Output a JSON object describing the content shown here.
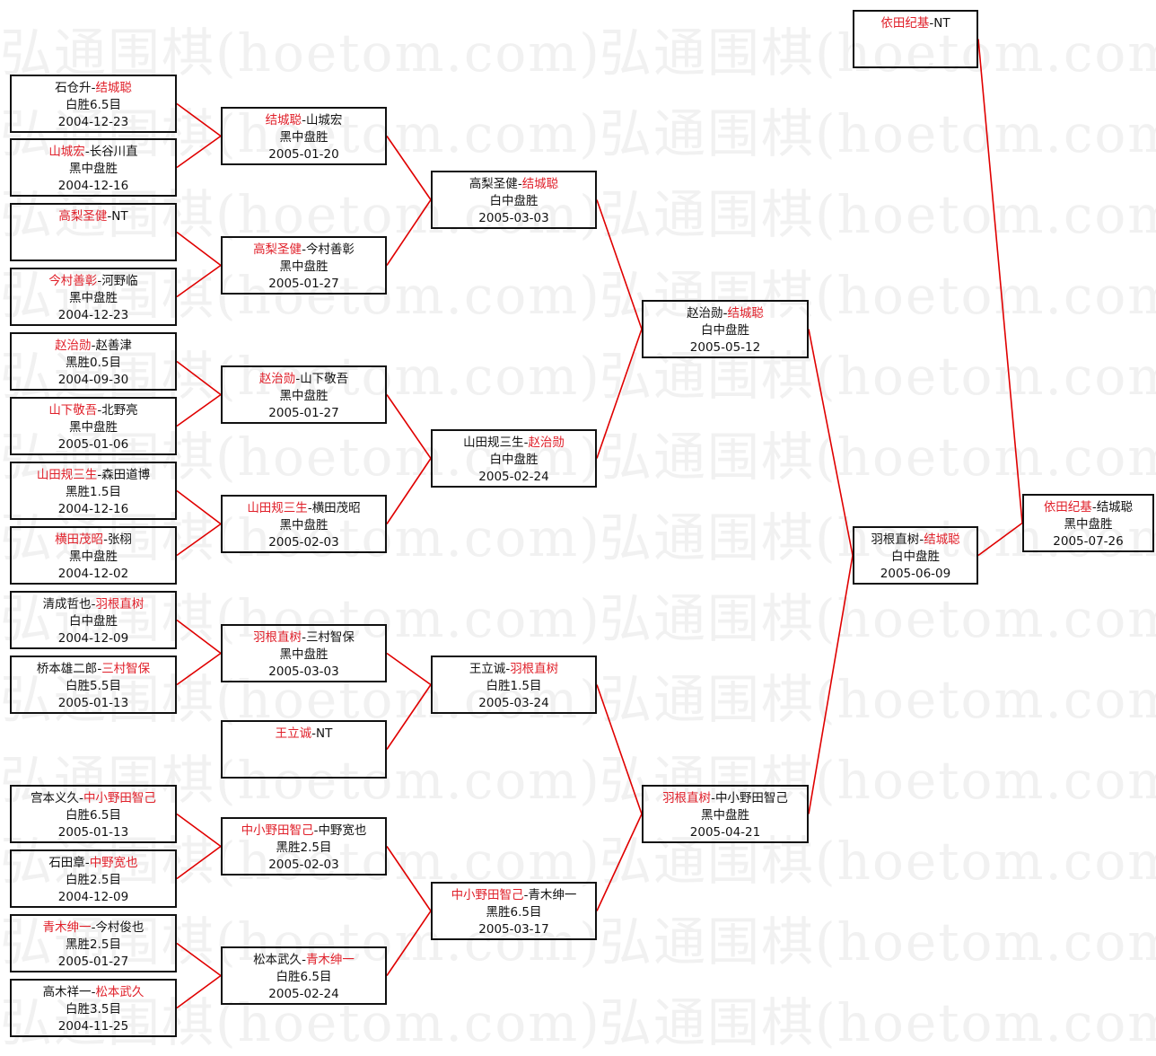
{
  "watermark": "弘通围棋(hoetom.com)",
  "colors": {
    "winner": "#e0202a",
    "connector": "#e00000",
    "border": "#111111"
  },
  "separator": "-",
  "rounds": {
    "round1": [
      {
        "p1": "石仓升",
        "p2": "结城聪",
        "winner": 2,
        "result": "白胜6.5目",
        "date": "2004-12-23"
      },
      {
        "p1": "山城宏",
        "p2": "长谷川直",
        "winner": 1,
        "result": "黑中盘胜",
        "date": "2004-12-16"
      },
      {
        "p1": "高梨圣健",
        "p2": "NT",
        "winner": 1,
        "result": "",
        "date": ""
      },
      {
        "p1": "今村善彰",
        "p2": "河野临",
        "winner": 1,
        "result": "黑中盘胜",
        "date": "2004-12-23"
      },
      {
        "p1": "赵治勋",
        "p2": "赵善津",
        "winner": 1,
        "result": "黑胜0.5目",
        "date": "2004-09-30"
      },
      {
        "p1": "山下敬吾",
        "p2": "北野亮",
        "winner": 1,
        "result": "黑中盘胜",
        "date": "2005-01-06"
      },
      {
        "p1": "山田规三生",
        "p2": "森田道博",
        "winner": 1,
        "result": "黑胜1.5目",
        "date": "2004-12-16"
      },
      {
        "p1": "横田茂昭",
        "p2": "张栩",
        "winner": 1,
        "result": "黑中盘胜",
        "date": "2004-12-02"
      },
      {
        "p1": "清成哲也",
        "p2": "羽根直树",
        "winner": 2,
        "result": "白中盘胜",
        "date": "2004-12-09"
      },
      {
        "p1": "桥本雄二郎",
        "p2": "三村智保",
        "winner": 2,
        "result": "白胜5.5目",
        "date": "2005-01-13"
      },
      {
        "p1": "宫本义久",
        "p2": "中小野田智己",
        "winner": 2,
        "result": "白胜6.5目",
        "date": "2005-01-13"
      },
      {
        "p1": "石田章",
        "p2": "中野宽也",
        "winner": 2,
        "result": "白胜2.5目",
        "date": "2004-12-09"
      },
      {
        "p1": "青木绅一",
        "p2": "今村俊也",
        "winner": 1,
        "result": "黑胜2.5目",
        "date": "2005-01-27"
      },
      {
        "p1": "高木祥一",
        "p2": "松本武久",
        "winner": 2,
        "result": "白胜3.5目",
        "date": "2004-11-25"
      }
    ],
    "round2": [
      {
        "p1": "结城聪",
        "p2": "山城宏",
        "winner": 1,
        "result": "黑中盘胜",
        "date": "2005-01-20"
      },
      {
        "p1": "高梨圣健",
        "p2": "今村善彰",
        "winner": 1,
        "result": "黑中盘胜",
        "date": "2005-01-27"
      },
      {
        "p1": "赵治勋",
        "p2": "山下敬吾",
        "winner": 1,
        "result": "黑中盘胜",
        "date": "2005-01-27"
      },
      {
        "p1": "山田规三生",
        "p2": "横田茂昭",
        "winner": 1,
        "result": "黑中盘胜",
        "date": "2005-02-03"
      },
      {
        "p1": "羽根直树",
        "p2": "三村智保",
        "winner": 1,
        "result": "黑中盘胜",
        "date": "2005-03-03"
      },
      {
        "p1": "王立诚",
        "p2": "NT",
        "winner": 1,
        "result": "",
        "date": ""
      },
      {
        "p1": "中小野田智己",
        "p2": "中野宽也",
        "winner": 1,
        "result": "黑胜2.5目",
        "date": "2005-02-03"
      },
      {
        "p1": "松本武久",
        "p2": "青木绅一",
        "winner": 2,
        "result": "白胜6.5目",
        "date": "2005-02-24"
      }
    ],
    "round3": [
      {
        "p1": "高梨圣健",
        "p2": "结城聪",
        "winner": 2,
        "result": "白中盘胜",
        "date": "2005-03-03"
      },
      {
        "p1": "山田规三生",
        "p2": "赵治勋",
        "winner": 2,
        "result": "白中盘胜",
        "date": "2005-02-24"
      },
      {
        "p1": "王立诚",
        "p2": "羽根直树",
        "winner": 2,
        "result": "白胜1.5目",
        "date": "2005-03-24"
      },
      {
        "p1": "中小野田智己",
        "p2": "青木绅一",
        "winner": 1,
        "result": "黑胜6.5目",
        "date": "2005-03-17"
      }
    ],
    "round4": [
      {
        "p1": "赵治勋",
        "p2": "结城聪",
        "winner": 2,
        "result": "白中盘胜",
        "date": "2005-05-12"
      },
      {
        "p1": "羽根直树",
        "p2": "中小野田智己",
        "winner": 1,
        "result": "黑中盘胜",
        "date": "2005-04-21"
      }
    ],
    "round5": [
      {
        "p1": "羽根直树",
        "p2": "结城聪",
        "winner": 2,
        "result": "白中盘胜",
        "date": "2005-06-09"
      },
      {
        "p1": "依田纪基",
        "p2": "NT",
        "winner": 1,
        "result": "",
        "date": ""
      }
    ],
    "final": [
      {
        "p1": "依田纪基",
        "p2": "结城聪",
        "winner": 1,
        "result": "黑中盘胜",
        "date": "2005-07-26"
      }
    ]
  }
}
